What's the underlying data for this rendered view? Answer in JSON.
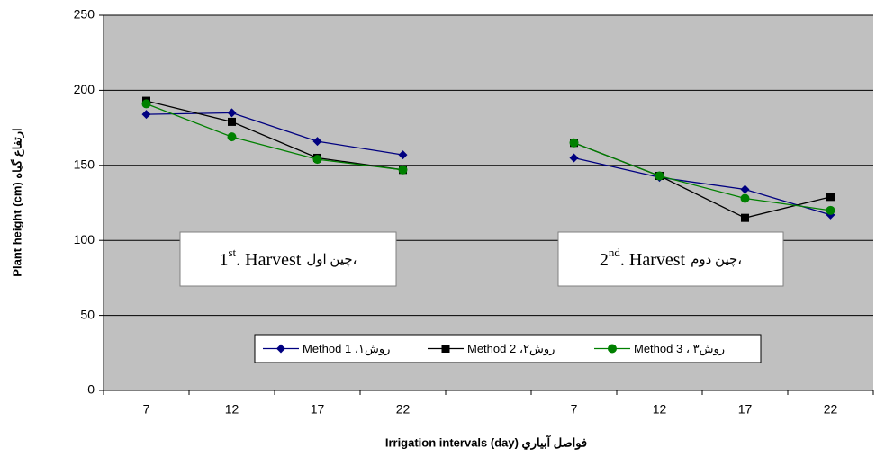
{
  "chart_data": {
    "type": "line",
    "categories": [
      "7",
      "12",
      "17",
      "22",
      null,
      "7",
      "12",
      "17",
      "22"
    ],
    "series": [
      {
        "name": "Method 1 ،روش۱",
        "color": "#000080",
        "marker": "diamond",
        "values": [
          184,
          185,
          166,
          157,
          null,
          155,
          142,
          134,
          117
        ]
      },
      {
        "name": "Method 2 ،روش۲",
        "color": "#000000",
        "marker": "square",
        "values": [
          193,
          179,
          155,
          147,
          null,
          165,
          143,
          115,
          129
        ]
      },
      {
        "name": "Method 3 ، روش۳",
        "color": "#008000",
        "marker": "circle",
        "values": [
          191,
          169,
          154,
          147,
          null,
          165,
          143,
          128,
          120
        ]
      }
    ],
    "ylim": [
      0,
      250
    ],
    "yticks": [
      0,
      50,
      100,
      150,
      200,
      250
    ],
    "grid": true,
    "y_label": "Plant height (cm) ارتفاع گیاه",
    "x_label": "Irrigation intervals (day) فواصل آبیاري",
    "annotations": [
      {
        "number": "1",
        "sup": "st",
        "text": ". Harvest",
        "persian": "چین اول،"
      },
      {
        "number": "2",
        "sup": "nd",
        "text": ". Harvest",
        "persian": "چین دوم،"
      }
    ],
    "legend": "bottom-center"
  }
}
